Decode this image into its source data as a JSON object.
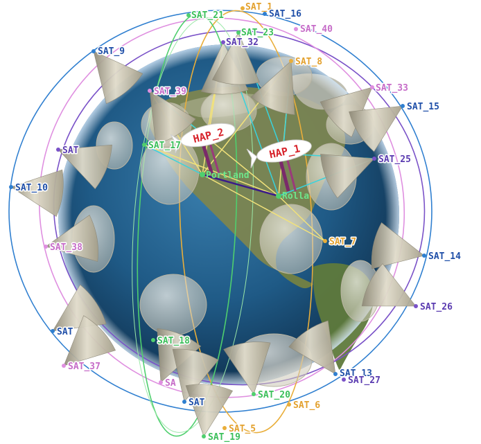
{
  "colors": {
    "blue": "#2f7fd0",
    "purple": "#7a52c8",
    "pink": "#df8fe0",
    "gold": "#e9ae3a",
    "green": "#4fcf6e",
    "cyan": "#38d3dd",
    "yellow": "#f2e27a",
    "cone": "#c9c2ad",
    "hap_text": "#d7232b",
    "ocean": "#1f5a86",
    "land": "#7c8550"
  },
  "satellites": [
    {
      "id": "sat_1",
      "label": "SAT_1",
      "orbit": "gold"
    },
    {
      "id": "sat_16",
      "label": "SAT_16",
      "orbit": "blue"
    },
    {
      "id": "sat_21",
      "label": "SAT_21",
      "orbit": "green"
    },
    {
      "id": "sat_23",
      "label": "SAT_23",
      "orbit": "green"
    },
    {
      "id": "sat_40",
      "label": "SAT_40",
      "orbit": "pink"
    },
    {
      "id": "sat_9",
      "label": "SAT_9",
      "orbit": "blue"
    },
    {
      "id": "sat_32",
      "label": "SAT_32",
      "orbit": "purple"
    },
    {
      "id": "sat_8",
      "label": "SAT_8",
      "orbit": "gold"
    },
    {
      "id": "sat_39",
      "label": "SAT_39",
      "orbit": "pink"
    },
    {
      "id": "sat_33",
      "label": "SAT_33",
      "orbit": "pink"
    },
    {
      "id": "sat_15",
      "label": "SAT_15",
      "orbit": "blue"
    },
    {
      "id": "sat_17",
      "label": "SAT_17",
      "orbit": "green"
    },
    {
      "id": "sat_25",
      "label": "SAT_25",
      "orbit": "purple"
    },
    {
      "id": "sat_10",
      "label": "SAT_10",
      "orbit": "blue"
    },
    {
      "id": "sat_x",
      "label": "SAT",
      "orbit": "purple"
    },
    {
      "id": "sat_38",
      "label": "SAT_38",
      "orbit": "pink"
    },
    {
      "id": "sat_7",
      "label": "SAT_7",
      "orbit": "gold"
    },
    {
      "id": "sat_14",
      "label": "SAT_14",
      "orbit": "blue"
    },
    {
      "id": "sat_26",
      "label": "SAT_26",
      "orbit": "purple"
    },
    {
      "id": "sat_18",
      "label": "SAT_18",
      "orbit": "green"
    },
    {
      "id": "sat_y",
      "label": "SAT",
      "orbit": "blue"
    },
    {
      "id": "sat_37",
      "label": "SAT_37",
      "orbit": "pink"
    },
    {
      "id": "sat_13",
      "label": "SAT_13",
      "orbit": "blue"
    },
    {
      "id": "sat_27",
      "label": "SAT_27",
      "orbit": "purple"
    },
    {
      "id": "sat_z",
      "label": "SA",
      "orbit": "pink"
    },
    {
      "id": "sat_20",
      "label": "SAT_20",
      "orbit": "green"
    },
    {
      "id": "sat_w",
      "label": "SAT",
      "orbit": "blue"
    },
    {
      "id": "sat_6",
      "label": "SAT_6",
      "orbit": "gold"
    },
    {
      "id": "sat_5",
      "label": "SAT_5",
      "orbit": "gold"
    },
    {
      "id": "sat_19",
      "label": "SAT_19",
      "orbit": "green"
    }
  ],
  "ground_stations": [
    {
      "id": "portland",
      "label": "Portland"
    },
    {
      "id": "rolla",
      "label": "Rolla"
    }
  ],
  "haps": [
    {
      "id": "hap_1",
      "label": "HAP_1"
    },
    {
      "id": "hap_2",
      "label": "HAP_2"
    }
  ]
}
